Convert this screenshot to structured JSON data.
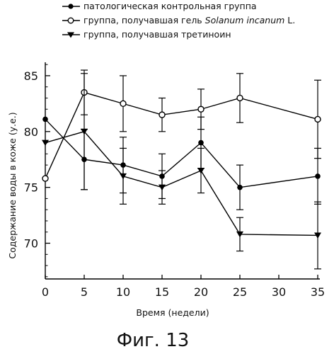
{
  "chart_data": {
    "type": "line",
    "x": [
      0,
      5,
      10,
      15,
      20,
      25,
      35
    ],
    "xlabel": "Время (недели)",
    "ylabel": "Содержание воды в коже (у.е.)",
    "xlim": [
      0,
      35
    ],
    "ylim": [
      66.8,
      86.2
    ],
    "xticks": [
      "0",
      "5",
      "10",
      "15",
      "20",
      "25",
      "30",
      "35"
    ],
    "yticks": [
      "70",
      "75",
      "80",
      "85"
    ],
    "grid": false,
    "legend_position": "top",
    "series": [
      {
        "name": "патологическая контрольная группа",
        "marker": "filled-circle",
        "color": "#000000",
        "values": [
          81.1,
          77.5,
          77.0,
          76.0,
          79.0,
          75.0,
          76.0
        ],
        "errors": [
          0.0,
          2.7,
          2.5,
          2.0,
          2.3,
          2.0,
          2.5
        ]
      },
      {
        "name_prefix": "группа, получавшая гель ",
        "name_italic": "Solanum incanum",
        "name_suffix": " L.",
        "marker": "open-circle",
        "color": "#000000",
        "values": [
          75.8,
          83.5,
          82.5,
          81.5,
          82.0,
          83.0,
          81.1
        ],
        "errors": [
          0.0,
          2.0,
          2.5,
          1.5,
          1.8,
          2.2,
          3.5
        ]
      },
      {
        "name": "группа, получавшая третиноин",
        "marker": "filled-triangle-down",
        "color": "#000000",
        "values": [
          79.0,
          80.0,
          76.0,
          75.0,
          76.5,
          70.8,
          70.7
        ],
        "errors": [
          0.0,
          5.2,
          2.5,
          1.5,
          2.0,
          1.5,
          3.0
        ]
      }
    ]
  },
  "caption": "Фиг. 13"
}
